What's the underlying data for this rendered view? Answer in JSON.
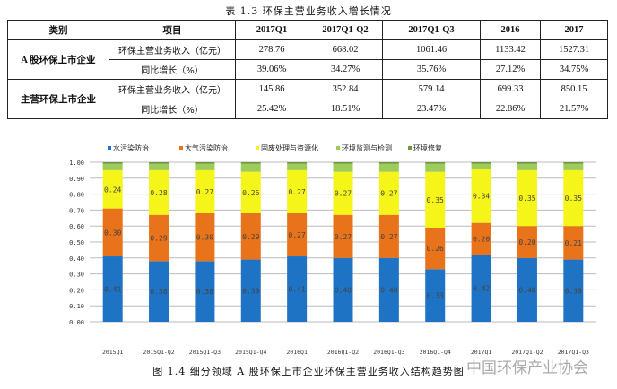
{
  "table": {
    "title": "表 1.3 环保主营业务收入增长情况",
    "headers": [
      "类别",
      "项目",
      "2017Q1",
      "2017Q1-Q2",
      "2017Q1-Q3",
      "2016",
      "2017"
    ],
    "groups": [
      {
        "category": "A 股环保上市企业",
        "rows": [
          {
            "item": "环保主营业务收入（亿元）",
            "values": [
              "278.76",
              "668.02",
              "1061.46",
              "1133.42",
              "1527.31"
            ]
          },
          {
            "item": "同比增长（%）",
            "values": [
              "39.06%",
              "34.27%",
              "35.76%",
              "27.12%",
              "34.75%"
            ]
          }
        ]
      },
      {
        "category": "主营环保上市企业",
        "rows": [
          {
            "item": "环保主营业务收入（亿元）",
            "values": [
              "145.86",
              "352.84",
              "579.14",
              "699.33",
              "850.15"
            ]
          },
          {
            "item": "同比增长（%）",
            "values": [
              "25.42%",
              "18.51%",
              "23.47%",
              "22.86%",
              "21.57%"
            ]
          }
        ]
      }
    ]
  },
  "chart_data": {
    "type": "bar",
    "stacked": true,
    "categories": [
      "2015Q1",
      "2015Q1-Q2",
      "2015Q1-Q3",
      "2015Q1-Q4",
      "2016Q1",
      "2016Q1-Q2",
      "2016Q1-Q3",
      "2016Q1-Q4",
      "2017Q1",
      "2017Q1-Q2",
      "2017Q1-Q3"
    ],
    "series": [
      {
        "name": "水污染防治",
        "color": "#1f73c4",
        "values": [
          0.41,
          0.38,
          0.38,
          0.39,
          0.41,
          0.4,
          0.4,
          0.33,
          0.42,
          0.4,
          0.39
        ]
      },
      {
        "name": "大气污染防治",
        "color": "#e8731a",
        "values": [
          0.3,
          0.29,
          0.3,
          0.29,
          0.27,
          0.27,
          0.27,
          0.26,
          0.2,
          0.2,
          0.21
        ]
      },
      {
        "name": "固废处理与资源化",
        "color": "#f5f51a",
        "values": [
          0.24,
          0.28,
          0.27,
          0.26,
          0.27,
          0.27,
          0.27,
          0.35,
          0.34,
          0.35,
          0.35
        ]
      },
      {
        "name": "环境监测与检测",
        "color": "#9dcc5a",
        "values": [
          0.04,
          0.04,
          0.04,
          0.05,
          0.04,
          0.05,
          0.05,
          0.05,
          0.03,
          0.04,
          0.04
        ]
      },
      {
        "name": "环境修复",
        "color": "#6f9a3a",
        "values": [
          0.01,
          0.01,
          0.01,
          0.01,
          0.01,
          0.01,
          0.01,
          0.01,
          0.01,
          0.01,
          0.01
        ]
      }
    ],
    "labeled_series": [
      0,
      1,
      2
    ],
    "yticks": [
      "0.00",
      "0.10",
      "0.20",
      "0.30",
      "0.40",
      "0.50",
      "0.60",
      "0.70",
      "0.80",
      "0.90",
      "1.00"
    ],
    "ylim": [
      0,
      1
    ],
    "legend": "top",
    "grid": true,
    "title": "图 1.4 细分领域 A 股环保上市企业环保主营业务收入结构趋势图"
  },
  "watermark": "中国环保产业协会"
}
